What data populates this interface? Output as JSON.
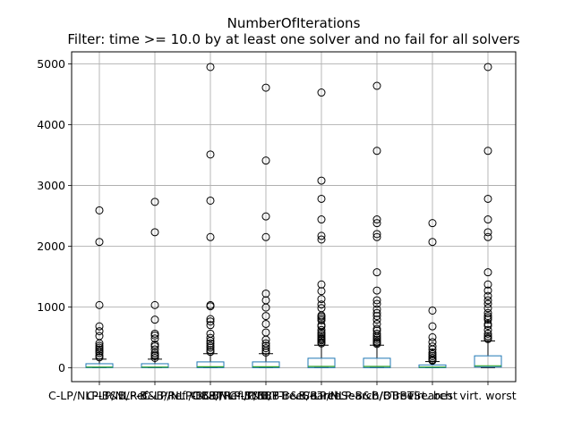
{
  "chart_data": {
    "type": "box",
    "title": "NumberOfIterations",
    "subtitle": "Filter: time >= 10.0 by at least one solver and no fail for all solvers",
    "xlabel": "",
    "ylabel": "",
    "ylim": [
      -230,
      5200
    ],
    "yticks": [
      0,
      1000,
      2000,
      3000,
      4000,
      5000
    ],
    "grid": true,
    "colors": {
      "box": "#1f77b4",
      "median": "#2ca02c",
      "whisker": "#000000",
      "grid": "#b0b0b0"
    },
    "categories": [
      "C-LP/NLP-B&B/Ref.",
      "C-LP/NLP-B&B/Ref./OBBT",
      "C-LP/NLP-B&B/Ref./OBBT",
      "C-LP/NLP-B&B/BTreeSearch",
      "C-LP/NLP-B&B/BTreeSearch/OBBT",
      "C-LP/NLP-B&B/BTreeSearch",
      "virt. best",
      "virt. worst"
    ],
    "boxes": [
      {
        "q1": 0,
        "median": 10,
        "q3": 65,
        "whislo": 0,
        "whishi": 140,
        "fliers": [
          2590,
          2070,
          1030,
          680,
          600,
          520,
          400,
          360,
          330,
          300,
          270,
          240,
          200,
          170
        ]
      },
      {
        "q1": 0,
        "median": 10,
        "q3": 65,
        "whislo": 0,
        "whishi": 140,
        "fliers": [
          2730,
          2230,
          1030,
          790,
          560,
          530,
          480,
          380,
          350,
          300,
          240,
          210,
          190,
          160
        ]
      },
      {
        "q1": 0,
        "median": 15,
        "q3": 95,
        "whislo": 0,
        "whishi": 230,
        "fliers": [
          4950,
          3510,
          2750,
          2150,
          1030,
          1010,
          800,
          760,
          700,
          560,
          490,
          440,
          400,
          360,
          330,
          290,
          260
        ]
      },
      {
        "q1": 0,
        "median": 15,
        "q3": 95,
        "whislo": 0,
        "whishi": 230,
        "fliers": [
          4610,
          3410,
          2490,
          2150,
          1220,
          1110,
          990,
          850,
          720,
          580,
          460,
          400,
          360,
          320,
          280,
          250
        ]
      },
      {
        "q1": 0,
        "median": 20,
        "q3": 155,
        "whislo": 0,
        "whishi": 370,
        "fliers": [
          4530,
          3080,
          2780,
          2440,
          2170,
          2110,
          1370,
          1260,
          1130,
          1040,
          980,
          860,
          840,
          810,
          780,
          700,
          680,
          620,
          580,
          550,
          520,
          490,
          470,
          450,
          420,
          400
        ]
      },
      {
        "q1": 0,
        "median": 20,
        "q3": 155,
        "whislo": 0,
        "whishi": 370,
        "fliers": [
          4640,
          3570,
          2440,
          2380,
          2200,
          2150,
          1570,
          1270,
          1110,
          1050,
          960,
          900,
          850,
          790,
          720,
          640,
          610,
          560,
          520,
          490,
          460,
          430,
          410,
          390
        ]
      },
      {
        "q1": 0,
        "median": 10,
        "q3": 45,
        "whislo": 0,
        "whishi": 100,
        "fliers": [
          2380,
          2070,
          940,
          680,
          500,
          420,
          350,
          300,
          250,
          220,
          190,
          160,
          130,
          115
        ]
      },
      {
        "q1": 10,
        "median": 30,
        "q3": 195,
        "whislo": 0,
        "whishi": 440,
        "fliers": [
          4950,
          3570,
          2780,
          2440,
          2230,
          2150,
          1570,
          1370,
          1270,
          1180,
          1110,
          1050,
          980,
          900,
          850,
          820,
          790,
          720,
          690,
          620,
          560,
          520,
          490,
          470
        ]
      }
    ]
  }
}
